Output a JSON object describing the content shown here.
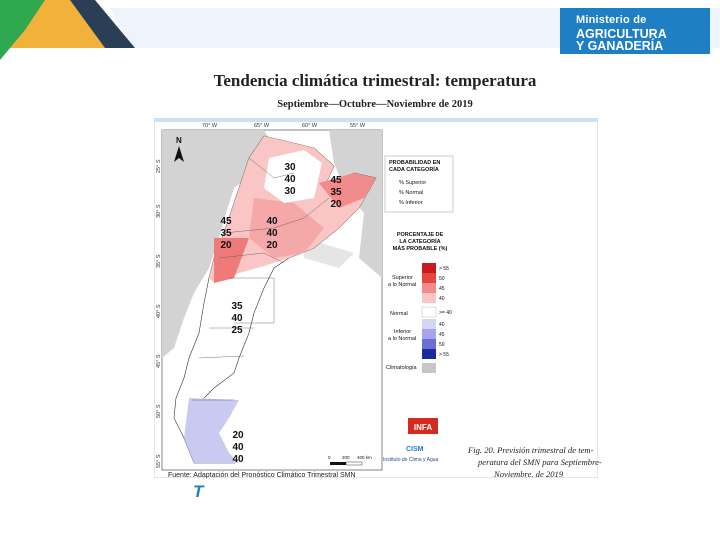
{
  "header": {
    "ministry_line1": "Ministerio de",
    "ministry_line2": "AGRICULTURA",
    "ministry_line3": "Y GANADERÍA"
  },
  "title": "Tendencia climática trimestral: temperatura",
  "subtitle": "Septiembre—Octubre—Noviembre de 2019",
  "map": {
    "top_ticks": [
      "70° W",
      "65° W",
      "60° W",
      "55° W"
    ],
    "left_ticks": [
      "25° S",
      "30° S",
      "35° S",
      "40° S",
      "45° S",
      "50° S",
      "55° S"
    ],
    "north": "N",
    "regions": [
      {
        "label": [
          "30",
          "40",
          "30"
        ],
        "category": "normal"
      },
      {
        "label": [
          "45",
          "35",
          "20"
        ],
        "category": "superior"
      },
      {
        "label": [
          "45",
          "35",
          "20"
        ],
        "category": "superior"
      },
      {
        "label": [
          "40",
          "40",
          "20"
        ],
        "category": "superior"
      },
      {
        "label": [
          "35",
          "40",
          "25"
        ],
        "category": "normal"
      },
      {
        "label": [
          "20",
          "40",
          "40"
        ],
        "category": "inferior"
      }
    ],
    "scale": {
      "ticks": [
        "0",
        "200",
        "400 km"
      ]
    }
  },
  "legend": {
    "prob_title": [
      "PROBABILIDAD EN",
      "CADA CATEGORÍA"
    ],
    "prob_items": [
      "% Superior",
      "% Normal",
      "% Inferior"
    ],
    "pct_title": [
      "PORCENTAJE DE",
      "LA CATEGORÍA",
      "MÁS PROBABLE (%)"
    ],
    "cat_superior": [
      "Superior",
      "a lo Normal"
    ],
    "cat_normal": "Normal",
    "cat_inferior": [
      "Inferior",
      "a lo Normal"
    ],
    "cat_clim": "Climatología",
    "values": [
      "> 55",
      "50",
      "45",
      "40",
      ">= 40",
      "40",
      "45",
      "50",
      "> 55"
    ],
    "colors": {
      "sup_55": "#c8191d",
      "sup_50": "#e0473f",
      "sup_45": "#f28b8b",
      "sup_40": "#f9c5c5",
      "normal": "#ffffff",
      "inf_40": "#d4d4f5",
      "inf_45": "#a5a5e8",
      "inf_50": "#6d6dd3",
      "inf_55": "#1a2a9c",
      "clim": "#c6c6c6"
    }
  },
  "logos": {
    "infa": "INFA",
    "cismi": "CISM",
    "institute": "Instituto de Clima y Agua"
  },
  "caption": [
    "Fig. 20. Previsión trimestral de tem-",
    "peratura del SMN para Septiembre-",
    "Noviembre. de 2019"
  ],
  "source": "Fuente: Adaptación del Pronóstico Climático Trimestral     SMN"
}
